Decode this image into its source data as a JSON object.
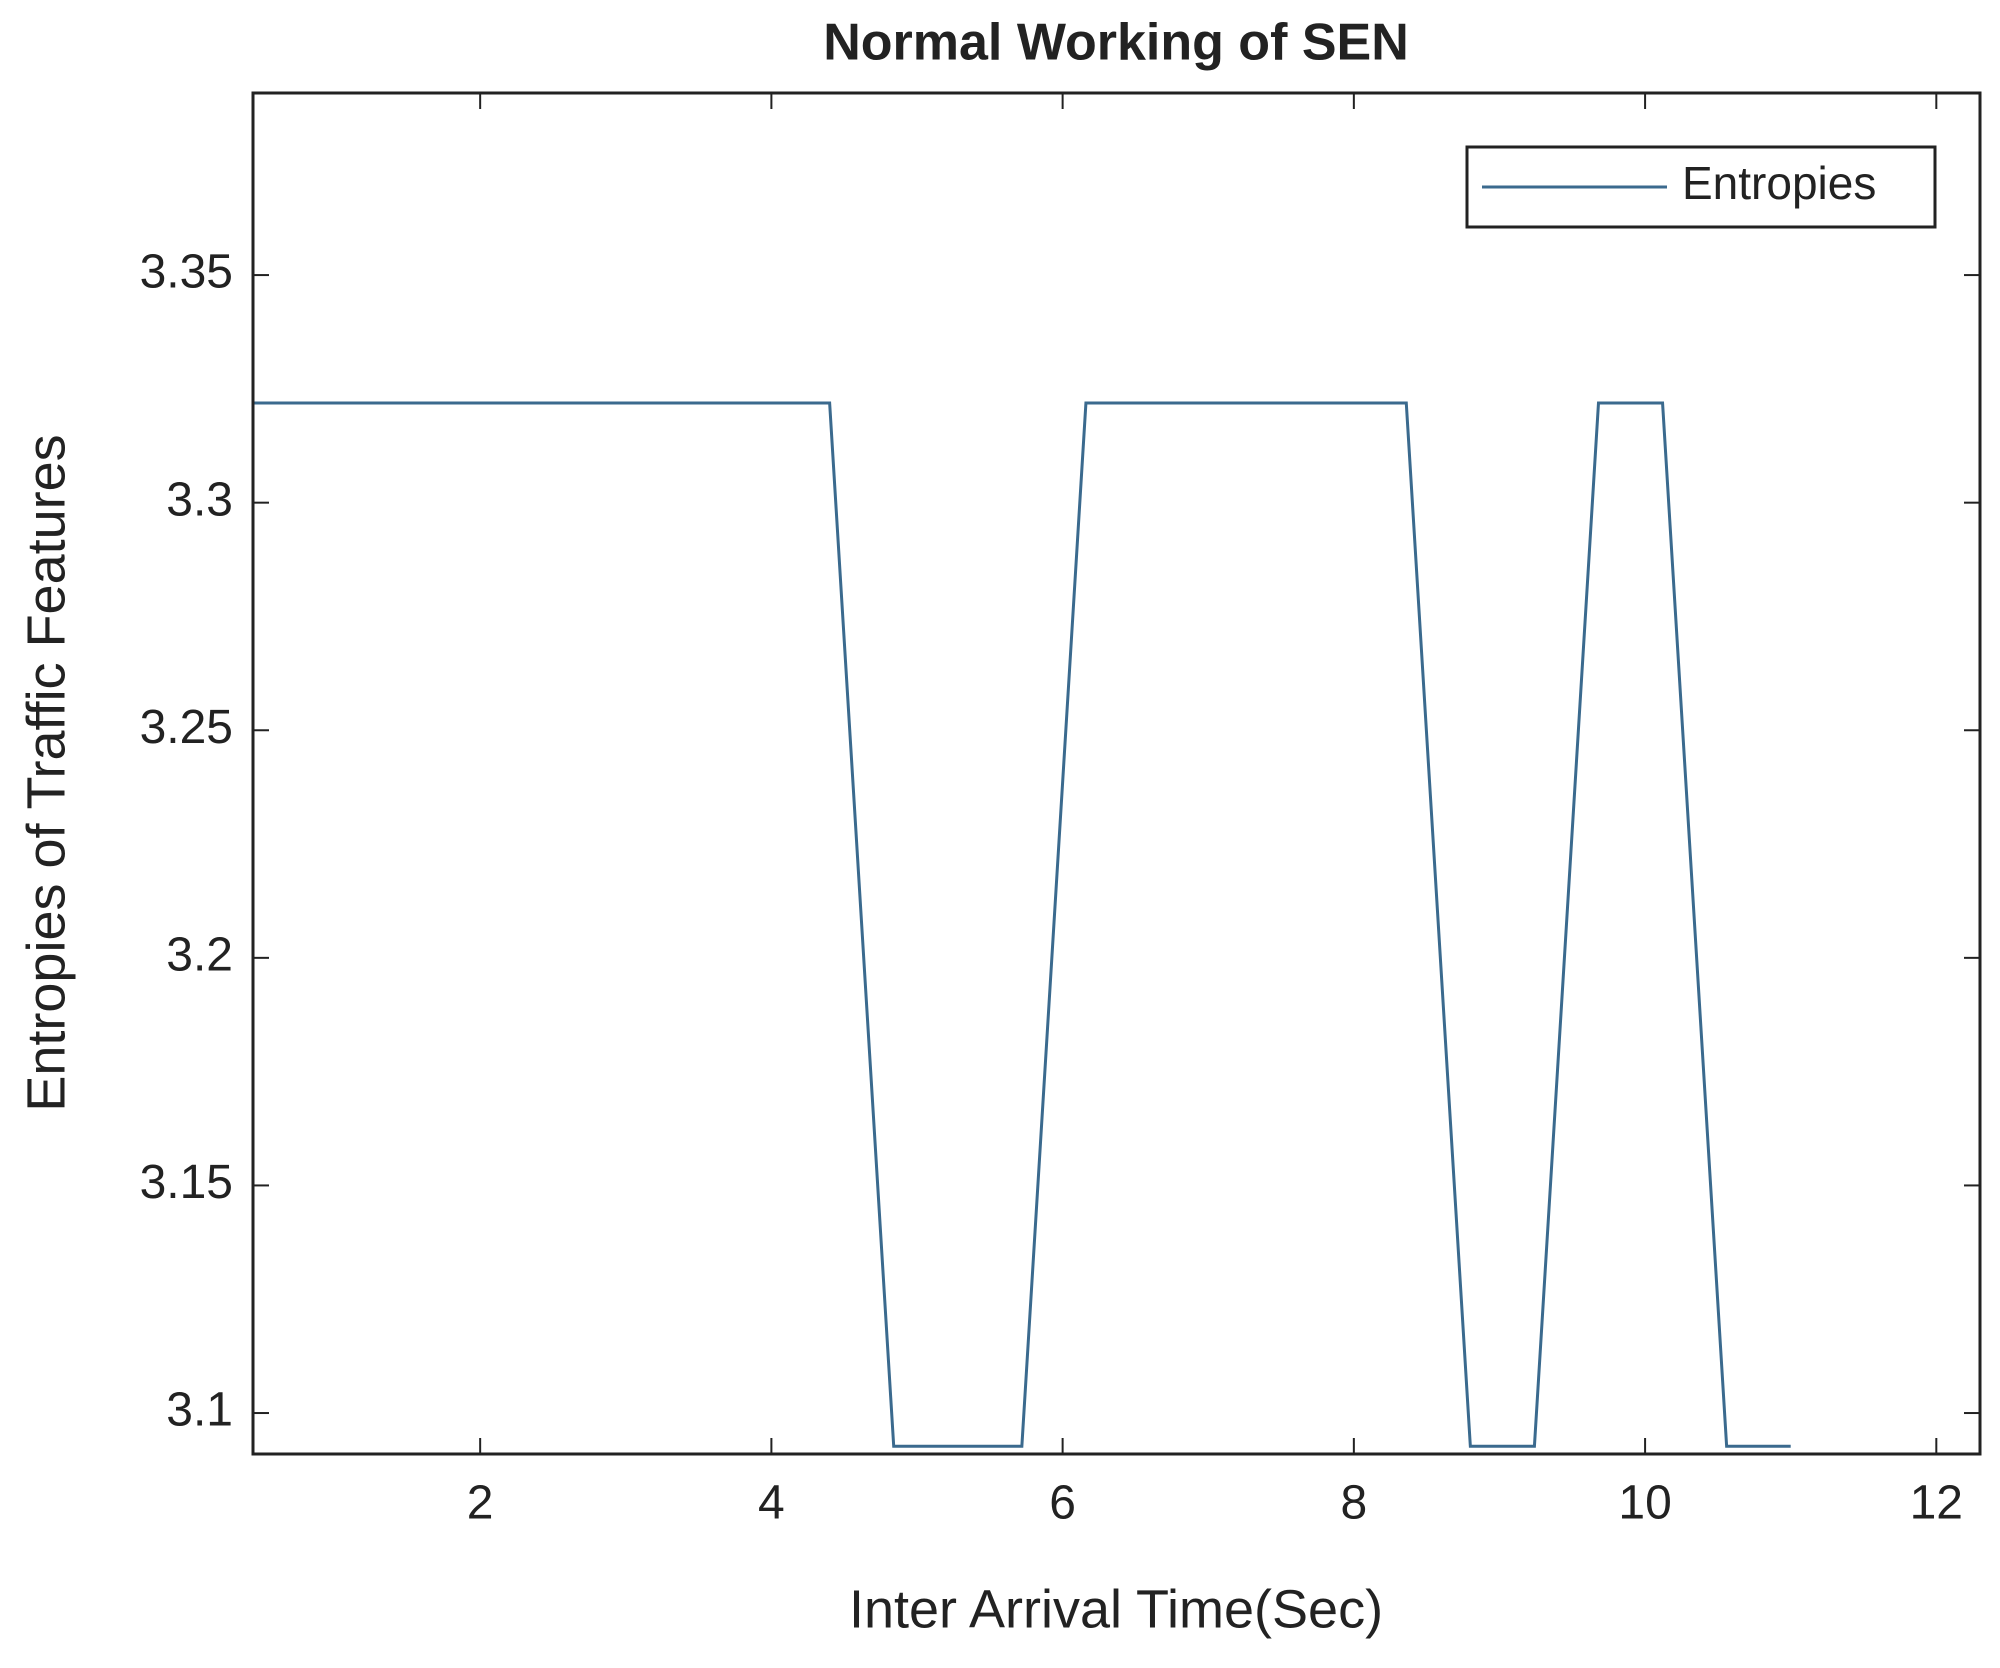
{
  "chart_data": {
    "type": "line",
    "title": "Normal Working of SEN",
    "x_label": "Inter Arrival Time(Sec)",
    "y_label": "Entropies of Traffic Features",
    "x": [
      0.44,
      4.4,
      4.84,
      5.72,
      6.16,
      8.36,
      8.8,
      9.24,
      9.68,
      10.12,
      10.56,
      11.0
    ],
    "series": [
      {
        "name": "Entropies",
        "color": "#3b6a8e",
        "values": [
          3.3219,
          3.3219,
          3.0927,
          3.0927,
          3.3219,
          3.3219,
          3.0927,
          3.0927,
          3.3219,
          3.3219,
          3.0927,
          3.0927
        ]
      }
    ],
    "xlim": [
      0.44,
      12.3
    ],
    "ylim": [
      3.091,
      3.39
    ],
    "xticks": [
      2,
      4,
      6,
      8,
      10,
      12
    ],
    "yticks": [
      3.1,
      3.15,
      3.2,
      3.25,
      3.3,
      3.35
    ],
    "grid": false,
    "legend": "upper right"
  }
}
